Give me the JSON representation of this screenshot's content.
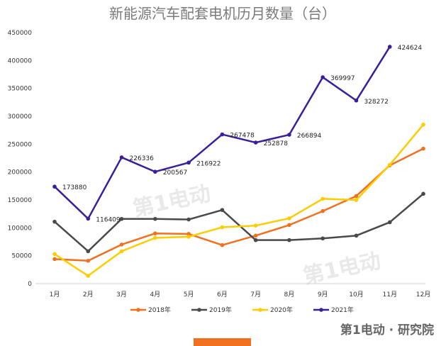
{
  "chart_data": {
    "type": "line",
    "title": "新能源汽车配套电机历月数量（台）",
    "xlabel": "",
    "ylabel": "",
    "categories": [
      "1月",
      "2月",
      "3月",
      "4月",
      "5月",
      "6月",
      "7月",
      "8月",
      "9月",
      "10月",
      "11月",
      "12月"
    ],
    "ylim": [
      0,
      450000
    ],
    "yticks": [
      0,
      50000,
      100000,
      150000,
      200000,
      250000,
      300000,
      350000,
      400000,
      450000
    ],
    "grid": false,
    "legend": "bottom",
    "series": [
      {
        "name": "2018年",
        "color": "#f07020",
        "values": [
          44000,
          41000,
          70000,
          90000,
          89000,
          69000,
          86000,
          105000,
          130000,
          157000,
          212000,
          242000
        ]
      },
      {
        "name": "2019年",
        "color": "#4a4a4a",
        "values": [
          111000,
          58000,
          116000,
          116000,
          115000,
          132000,
          78000,
          78000,
          81000,
          86000,
          110000,
          161000
        ]
      },
      {
        "name": "2020年",
        "color": "#ffcc00",
        "values": [
          53000,
          14000,
          58000,
          82000,
          84000,
          101000,
          104000,
          117000,
          152000,
          150000,
          213000,
          285000
        ]
      },
      {
        "name": "2021年",
        "color": "#3a1e9c",
        "values": [
          173880,
          116409,
          226336,
          200567,
          216922,
          267478,
          252878,
          266894,
          369997,
          328272,
          424624,
          null
        ]
      }
    ],
    "data_labels_series": "2021年",
    "data_labels": [
      "173880",
      "116409",
      "226336",
      "200567",
      "216922",
      "267478",
      "252878",
      "266894",
      "369997",
      "328272",
      "424624"
    ]
  },
  "watermark": {
    "text": "第1电动"
  },
  "brand": {
    "text": "第1电动 · 研究院",
    "accent": "#e31e24"
  },
  "footer_bar": {
    "color": "#f07020"
  }
}
